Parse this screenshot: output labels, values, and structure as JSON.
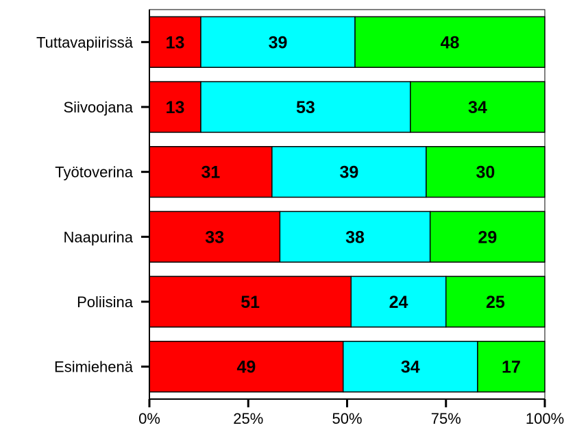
{
  "chart_data": {
    "type": "bar",
    "orientation": "horizontal",
    "stacked": "percent",
    "categories": [
      "Tuttavapiirissä",
      "Siivoojana",
      "Työtoverina",
      "Naapurina",
      "Poliisina",
      "Esimiehenä"
    ],
    "series": [
      {
        "color": "#ff0000",
        "values": [
          13,
          13,
          31,
          33,
          51,
          49
        ]
      },
      {
        "color": "#00ffff",
        "values": [
          39,
          53,
          39,
          38,
          24,
          34
        ]
      },
      {
        "color": "#00ff00",
        "values": [
          48,
          34,
          30,
          29,
          25,
          17
        ]
      }
    ],
    "xlim": [
      0,
      100
    ],
    "x_ticks": [
      "0%",
      "25%",
      "50%",
      "75%",
      "100%"
    ],
    "grid": false,
    "legend": "none",
    "title": "",
    "xlabel": "",
    "ylabel": ""
  }
}
